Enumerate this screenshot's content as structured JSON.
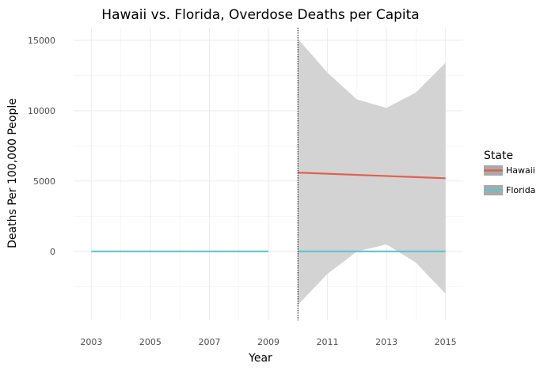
{
  "chart_data": {
    "type": "line",
    "title": "Hawaii vs. Florida, Overdose Deaths per Capita",
    "xlabel": "Year",
    "ylabel": "Deaths Per 100,000 People",
    "xlim": [
      2002.4,
      2015.6
    ],
    "ylim": [
      -4900,
      15900
    ],
    "x_ticks": [
      2003,
      2005,
      2007,
      2009,
      2011,
      2013,
      2015
    ],
    "y_ticks": [
      0,
      5000,
      10000,
      15000
    ],
    "y_tick_labels": [
      "0",
      "5000",
      "10000",
      "15000"
    ],
    "grid": true,
    "legend": {
      "title": "State",
      "placement": "right"
    },
    "vline": {
      "x": 2010,
      "style": "dotted"
    },
    "series": [
      {
        "name": "Hawaii",
        "color": "#e06050",
        "points": [
          [
            2010,
            5600
          ],
          [
            2015,
            5200
          ]
        ]
      },
      {
        "name": "Florida",
        "color": "#5fc4cc",
        "points": [
          [
            2003,
            0
          ],
          [
            2009,
            0
          ]
        ]
      },
      {
        "name": "Florida",
        "color": "#5fc4cc",
        "points": [
          [
            2010,
            0
          ],
          [
            2015,
            0
          ]
        ]
      }
    ],
    "legend_entries": [
      {
        "label": "Hawaii",
        "color": "#e06050"
      },
      {
        "label": "Florida",
        "color": "#5fc4cc"
      }
    ],
    "ribbon": {
      "color": "#d3d3d3",
      "x": [
        2010,
        2011,
        2012,
        2013,
        2014,
        2015
      ],
      "upper": [
        15100,
        12700,
        10800,
        10200,
        11300,
        13400
      ],
      "lower": [
        -3800,
        -1600,
        0,
        500,
        -800,
        -3000
      ]
    }
  }
}
